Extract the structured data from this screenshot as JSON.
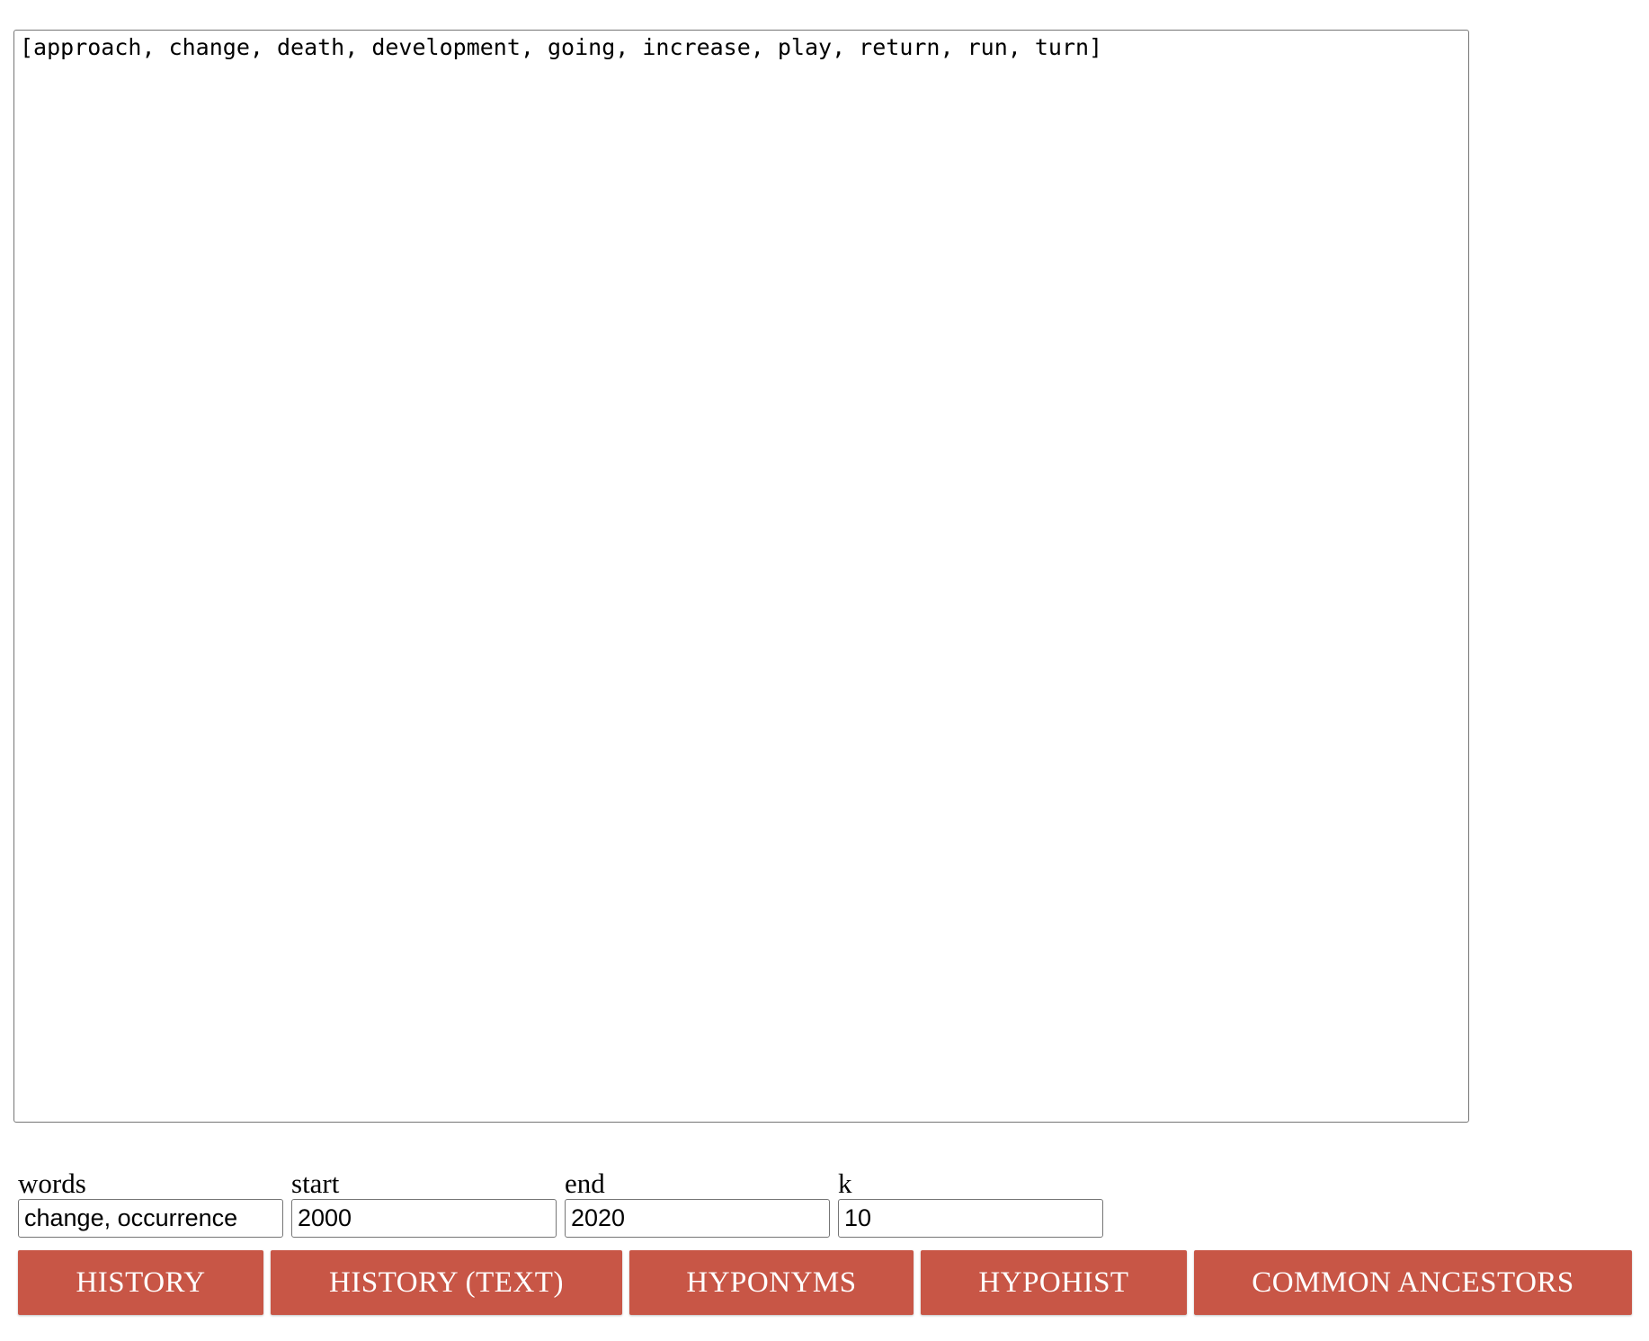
{
  "output": {
    "text": "[approach, change, death, development, going, increase, play, return, run, turn]"
  },
  "form": {
    "words": {
      "label": "words",
      "value": "change, occurrence"
    },
    "start": {
      "label": "start",
      "value": "2000"
    },
    "end": {
      "label": "end",
      "value": "2020"
    },
    "k": {
      "label": "k",
      "value": "10"
    }
  },
  "buttons": {
    "history": "HISTORY",
    "history_text": "HISTORY (TEXT)",
    "hyponyms": "HYPONYMS",
    "hypohist": "HYPOHIST",
    "common_ancestors": "COMMON ANCESTORS"
  },
  "colors": {
    "button_bg": "#c85646",
    "button_text": "#ffffff",
    "border": "#767676"
  }
}
